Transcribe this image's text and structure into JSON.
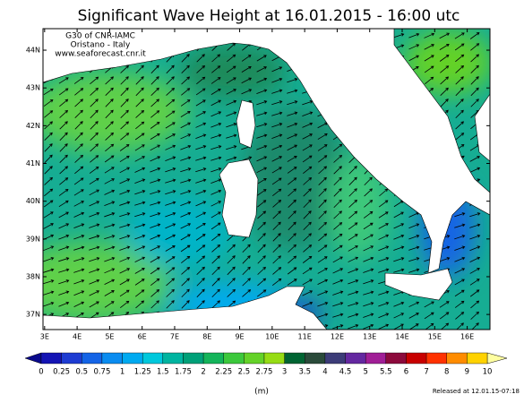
{
  "title": "Significant Wave Height at 16.01.2015 - 16:00 utc",
  "credits": [
    "G30 of CNR-IAMC",
    "Oristano - Italy",
    "www.seaforecast.cnr.it"
  ],
  "map": {
    "xlim": [
      2.95,
      16.7
    ],
    "ylim": [
      36.6,
      44.57
    ],
    "lon_ticks": [
      {
        "value": 3,
        "label": "3E"
      },
      {
        "value": 4,
        "label": "4E"
      },
      {
        "value": 5,
        "label": "5E"
      },
      {
        "value": 6,
        "label": "6E"
      },
      {
        "value": 7,
        "label": "7E"
      },
      {
        "value": 8,
        "label": "8E"
      },
      {
        "value": 9,
        "label": "9E"
      },
      {
        "value": 10,
        "label": "10E"
      },
      {
        "value": 11,
        "label": "11E"
      },
      {
        "value": 12,
        "label": "12E"
      },
      {
        "value": 13,
        "label": "13E"
      },
      {
        "value": 14,
        "label": "14E"
      },
      {
        "value": 15,
        "label": "15E"
      },
      {
        "value": 16,
        "label": "16E"
      }
    ],
    "lat_ticks": [
      {
        "value": 44,
        "label": "44N"
      },
      {
        "value": 43,
        "label": "43N"
      },
      {
        "value": 42,
        "label": "42N"
      },
      {
        "value": 41,
        "label": "41N"
      },
      {
        "value": 40,
        "label": "40N"
      },
      {
        "value": 39,
        "label": "39N"
      },
      {
        "value": 38,
        "label": "38N"
      },
      {
        "value": 37,
        "label": "37N"
      }
    ]
  },
  "colorbar": {
    "levels": [
      0,
      0.25,
      0.5,
      0.75,
      1,
      1.25,
      1.5,
      1.75,
      2,
      2.25,
      2.5,
      2.75,
      3,
      3.5,
      4,
      4.5,
      5,
      5.5,
      6,
      7,
      8,
      9,
      10
    ],
    "under_color": "#0a0a8c",
    "colors": [
      "#1414b4",
      "#1e3cd2",
      "#1464e6",
      "#0a8cf0",
      "#00aaf0",
      "#00c8dc",
      "#00b4a0",
      "#00a078",
      "#14b45a",
      "#3cc83c",
      "#64d228",
      "#96dc14",
      "#006432",
      "#2a4a3a",
      "#3c3c78",
      "#6428a0",
      "#a01e96",
      "#8c0a3c",
      "#c80000",
      "#ff3200",
      "#ff8c00",
      "#ffd200"
    ],
    "over_color": "#ffffa0",
    "unit": "(m)"
  },
  "footer": "Released at 12.01.15-07:18"
}
